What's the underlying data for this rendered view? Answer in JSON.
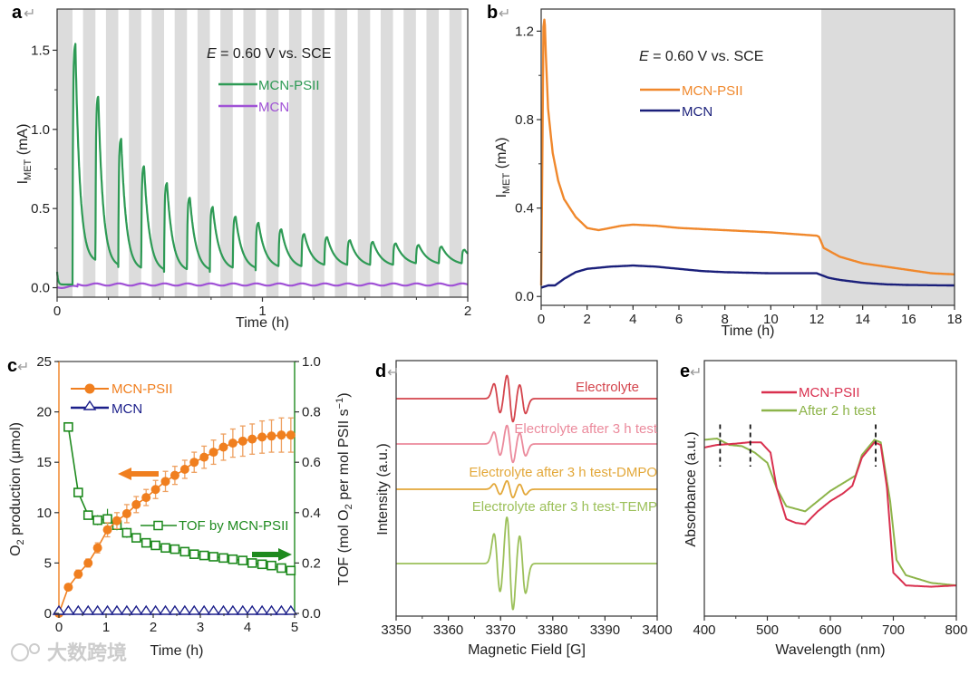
{
  "figure": {
    "panel_labels": {
      "a": "a",
      "b": "b",
      "c": "c",
      "d": "d",
      "e": "e"
    },
    "return_mark": "↵",
    "watermark": "大数跨境"
  },
  "chart_data": [
    {
      "panel": "a",
      "type": "line",
      "xlabel": "Time (h)",
      "ylabel": {
        "main": "I",
        "sub": "MET",
        "unit": " (mA)"
      },
      "annotation": {
        "italic": "E",
        "text": " = 0.60 V vs. SCE"
      },
      "xlim": [
        0,
        2
      ],
      "ylim": [
        -0.06,
        1.76
      ],
      "xticks": [
        {
          "v": 0,
          "label": "0"
        },
        {
          "v": 1,
          "label": "1"
        },
        {
          "v": 2,
          "label": "2"
        }
      ],
      "yticks": [
        {
          "v": 0,
          "label": "0.0"
        },
        {
          "v": 0.5,
          "label": "0.5"
        },
        {
          "v": 1.0,
          "label": "1.0"
        },
        {
          "v": 1.5,
          "label": "1.5"
        }
      ],
      "light_cycle": {
        "first_dark_end_h": 0.075,
        "period_h": 0.1115,
        "dark_duration_h": 0.06,
        "dark_color": "#dcdcdc"
      },
      "series": [
        {
          "name": "MCN-PSII",
          "color": "#2e9a55",
          "peaks": [
            1.54,
            1.21,
            0.94,
            0.77,
            0.66,
            0.57,
            0.51,
            0.45,
            0.41,
            0.37,
            0.34,
            0.32,
            0.3,
            0.29,
            0.28,
            0.27,
            0.26,
            0.24
          ],
          "troughs": [
            0.16,
            0.13,
            0.11,
            0.1,
            0.1,
            0.1,
            0.11,
            0.11,
            0.12,
            0.12,
            0.13,
            0.13,
            0.13,
            0.13,
            0.14,
            0.14,
            0.14,
            0.15
          ]
        },
        {
          "name": "MCN",
          "color": "#a052d6",
          "baseline": 0.02
        }
      ]
    },
    {
      "panel": "b",
      "type": "line",
      "xlabel": "Time (h)",
      "ylabel": {
        "main": "I",
        "sub": "MET",
        "unit": " (mA)"
      },
      "annotation": {
        "italic": "E",
        "text": " = 0.60 V vs. SCE"
      },
      "xlim": [
        0,
        18
      ],
      "ylim": [
        -0.04,
        1.3
      ],
      "dark_region_start_h": 12.2,
      "xticks": [
        {
          "v": 0,
          "label": "0"
        },
        {
          "v": 2,
          "label": "2"
        },
        {
          "v": 4,
          "label": "4"
        },
        {
          "v": 6,
          "label": "6"
        },
        {
          "v": 8,
          "label": "8"
        },
        {
          "v": 10,
          "label": "10"
        },
        {
          "v": 12,
          "label": "12"
        },
        {
          "v": 14,
          "label": "14"
        },
        {
          "v": 16,
          "label": "16"
        },
        {
          "v": 18,
          "label": "18"
        }
      ],
      "yticks": [
        {
          "v": 0,
          "label": "0.0"
        },
        {
          "v": 0.4,
          "label": "0.4"
        },
        {
          "v": 0.8,
          "label": "0.8"
        },
        {
          "v": 1.2,
          "label": "1.2"
        }
      ],
      "series": [
        {
          "name": "MCN-PSII",
          "color": "#f0882c",
          "points": [
            [
              0,
              0.05
            ],
            [
              0.05,
              0.6
            ],
            [
              0.1,
              1.22
            ],
            [
              0.15,
              1.26
            ],
            [
              0.2,
              1.1
            ],
            [
              0.3,
              0.85
            ],
            [
              0.5,
              0.65
            ],
            [
              0.75,
              0.52
            ],
            [
              1,
              0.44
            ],
            [
              1.5,
              0.36
            ],
            [
              2,
              0.31
            ],
            [
              2.5,
              0.3
            ],
            [
              3,
              0.31
            ],
            [
              3.5,
              0.32
            ],
            [
              4,
              0.325
            ],
            [
              5,
              0.32
            ],
            [
              6,
              0.31
            ],
            [
              8,
              0.3
            ],
            [
              10,
              0.29
            ],
            [
              12,
              0.275
            ],
            [
              12.1,
              0.27
            ],
            [
              12.3,
              0.22
            ],
            [
              13,
              0.18
            ],
            [
              14,
              0.15
            ],
            [
              15,
              0.135
            ],
            [
              16,
              0.12
            ],
            [
              17,
              0.105
            ],
            [
              18,
              0.1
            ]
          ]
        },
        {
          "name": "MCN",
          "color": "#1a1f7a",
          "points": [
            [
              0,
              0.04
            ],
            [
              0.3,
              0.05
            ],
            [
              0.6,
              0.05
            ],
            [
              1,
              0.08
            ],
            [
              1.5,
              0.11
            ],
            [
              2,
              0.125
            ],
            [
              3,
              0.135
            ],
            [
              4,
              0.14
            ],
            [
              5,
              0.135
            ],
            [
              6,
              0.125
            ],
            [
              7,
              0.115
            ],
            [
              8,
              0.11
            ],
            [
              10,
              0.105
            ],
            [
              12,
              0.105
            ],
            [
              12.5,
              0.085
            ],
            [
              13,
              0.075
            ],
            [
              14,
              0.062
            ],
            [
              15,
              0.055
            ],
            [
              16,
              0.052
            ],
            [
              18,
              0.05
            ]
          ]
        }
      ]
    },
    {
      "panel": "c",
      "type": "scatter",
      "xlabel": "Time (h)",
      "ylabel_left": {
        "a": "O",
        "sub": "2",
        "b": " production (μmol)"
      },
      "ylabel_right": {
        "a": "TOF (mol O",
        "sub": "2",
        "b": " per mol PSII s",
        "sup": "−1",
        "c": ")"
      },
      "xlim": [
        0,
        5
      ],
      "ylim_left": [
        0,
        25
      ],
      "ylim_right": [
        0,
        1.0
      ],
      "xticks": [
        {
          "v": 0,
          "label": "0"
        },
        {
          "v": 1,
          "label": "1"
        },
        {
          "v": 2,
          "label": "2"
        },
        {
          "v": 3,
          "label": "3"
        },
        {
          "v": 4,
          "label": "4"
        },
        {
          "v": 5,
          "label": "5"
        }
      ],
      "yticks_left": [
        {
          "v": 0,
          "label": "0"
        },
        {
          "v": 5,
          "label": "5"
        },
        {
          "v": 10,
          "label": "10"
        },
        {
          "v": 15,
          "label": "15"
        },
        {
          "v": 20,
          "label": "20"
        },
        {
          "v": 25,
          "label": "25"
        }
      ],
      "yticks_right": [
        {
          "v": 0,
          "label": "0.0"
        },
        {
          "v": 0.2,
          "label": "0.2"
        },
        {
          "v": 0.4,
          "label": "0.4"
        },
        {
          "v": 0.6,
          "label": "0.6"
        },
        {
          "v": 0.8,
          "label": "0.8"
        },
        {
          "v": 1.0,
          "label": "1.0"
        }
      ],
      "time": [
        0,
        0.2,
        0.41,
        0.62,
        0.82,
        1.03,
        1.23,
        1.44,
        1.64,
        1.85,
        2.05,
        2.26,
        2.46,
        2.67,
        2.87,
        3.08,
        3.28,
        3.49,
        3.69,
        3.9,
        4.1,
        4.31,
        4.51,
        4.72,
        4.92
      ],
      "series": [
        {
          "name": "MCN-PSII",
          "axis": "left",
          "marker": "filled-circle",
          "color": "#f07f1f",
          "values": [
            0,
            2.6,
            3.9,
            5.0,
            6.5,
            8.3,
            9.2,
            9.9,
            10.8,
            11.5,
            12.3,
            13.1,
            13.7,
            14.3,
            15.0,
            15.5,
            16.0,
            16.5,
            16.9,
            17.1,
            17.3,
            17.5,
            17.6,
            17.7,
            17.7
          ],
          "errors": [
            0,
            0.3,
            0.4,
            0.4,
            0.5,
            0.7,
            0.8,
            0.9,
            0.8,
            0.8,
            0.9,
            1.0,
            0.9,
            0.9,
            1.0,
            1.1,
            1.2,
            1.3,
            1.4,
            1.5,
            1.5,
            1.6,
            1.6,
            1.7,
            1.7
          ]
        },
        {
          "name": "MCN",
          "axis": "left",
          "marker": "open-triangle",
          "color": "#1b1f8a",
          "values": [
            0,
            0,
            0,
            0,
            0,
            0,
            0,
            0,
            0,
            0,
            0,
            0,
            0,
            0,
            0,
            0,
            0,
            0,
            0,
            0,
            0,
            0,
            0,
            0,
            0
          ]
        },
        {
          "name": "TOF by MCN-PSII",
          "axis": "right",
          "marker": "open-square",
          "color": "#1e8a1e",
          "values": [
            null,
            0.74,
            0.48,
            0.39,
            0.37,
            0.375,
            0.35,
            0.32,
            0.3,
            0.28,
            0.27,
            0.26,
            0.255,
            0.245,
            0.235,
            0.23,
            0.225,
            0.22,
            0.215,
            0.21,
            0.2,
            0.195,
            0.19,
            0.18,
            0.17
          ],
          "errors": [
            0,
            0.01,
            0.01,
            0.01,
            0.02,
            0.04,
            0.02,
            0.02,
            0.01,
            0.01,
            0.01,
            0.01,
            0.01,
            0.01,
            0.01,
            0.01,
            0.01,
            0.01,
            0.01,
            0.01,
            0.01,
            0.01,
            0.01,
            0.01,
            0.01
          ]
        }
      ],
      "arrows": [
        {
          "direction": "left",
          "points_to": "left-axis",
          "color": "#f07f1f"
        },
        {
          "direction": "right",
          "points_to": "right-axis",
          "color": "#1e8a1e"
        }
      ]
    },
    {
      "panel": "d",
      "type": "line",
      "xlabel": "Magnetic Field [G]",
      "ylabel": "Intensity (a.u.)",
      "xlim": [
        3350,
        3400
      ],
      "xticks": [
        {
          "v": 3350,
          "label": "3350"
        },
        {
          "v": 3360,
          "label": "3360"
        },
        {
          "v": 3370,
          "label": "3370"
        },
        {
          "v": 3380,
          "label": "3380"
        },
        {
          "v": 3390,
          "label": "3390"
        },
        {
          "v": 3400,
          "label": "3400"
        }
      ],
      "line_centers_G": [
        3369.35,
        3371.8,
        3374.2
      ],
      "series": [
        {
          "name": "Electrolyte",
          "color": "#d4444c",
          "relative_intensity": 1.0
        },
        {
          "name": "Electrolyte after 3 h test",
          "color": "#eb8a9c",
          "relative_intensity": 0.8
        },
        {
          "name": "Electrolyte after 3 h test-DMPO",
          "color": "#e3a83a",
          "relative_intensity": 0.36
        },
        {
          "name": "Electrolyte after 3 h test-TEMP",
          "color": "#9cc05a",
          "relative_intensity": 2.0
        }
      ]
    },
    {
      "panel": "e",
      "type": "line",
      "xlabel": "Wavelength (nm)",
      "ylabel": "Absorbance (a.u.)",
      "xlim": [
        400,
        800
      ],
      "ylim": [
        0,
        1
      ],
      "xticks": [
        {
          "v": 400,
          "label": "400"
        },
        {
          "v": 500,
          "label": "500"
        },
        {
          "v": 600,
          "label": "600"
        },
        {
          "v": 700,
          "label": "700"
        },
        {
          "v": 800,
          "label": "800"
        }
      ],
      "dashed_markers_nm": [
        425,
        473,
        672
      ],
      "series": [
        {
          "name": "MCN-PSII",
          "color": "#d9304f",
          "points": [
            [
              400,
              0.66
            ],
            [
              420,
              0.67
            ],
            [
              450,
              0.675
            ],
            [
              470,
              0.68
            ],
            [
              490,
              0.68
            ],
            [
              505,
              0.64
            ],
            [
              515,
              0.5
            ],
            [
              530,
              0.38
            ],
            [
              545,
              0.365
            ],
            [
              560,
              0.36
            ],
            [
              580,
              0.41
            ],
            [
              600,
              0.45
            ],
            [
              620,
              0.48
            ],
            [
              635,
              0.51
            ],
            [
              650,
              0.62
            ],
            [
              670,
              0.68
            ],
            [
              680,
              0.67
            ],
            [
              690,
              0.5
            ],
            [
              700,
              0.17
            ],
            [
              720,
              0.12
            ],
            [
              760,
              0.115
            ],
            [
              800,
              0.12
            ]
          ]
        },
        {
          "name": "After 2 h test",
          "color": "#8db44a",
          "points": [
            [
              400,
              0.69
            ],
            [
              420,
              0.695
            ],
            [
              440,
              0.67
            ],
            [
              460,
              0.665
            ],
            [
              480,
              0.64
            ],
            [
              500,
              0.6
            ],
            [
              515,
              0.5
            ],
            [
              530,
              0.43
            ],
            [
              560,
              0.41
            ],
            [
              580,
              0.45
            ],
            [
              600,
              0.49
            ],
            [
              620,
              0.52
            ],
            [
              640,
              0.55
            ],
            [
              650,
              0.63
            ],
            [
              670,
              0.69
            ],
            [
              680,
              0.68
            ],
            [
              695,
              0.45
            ],
            [
              705,
              0.22
            ],
            [
              720,
              0.16
            ],
            [
              760,
              0.13
            ],
            [
              800,
              0.12
            ]
          ]
        }
      ]
    }
  ]
}
